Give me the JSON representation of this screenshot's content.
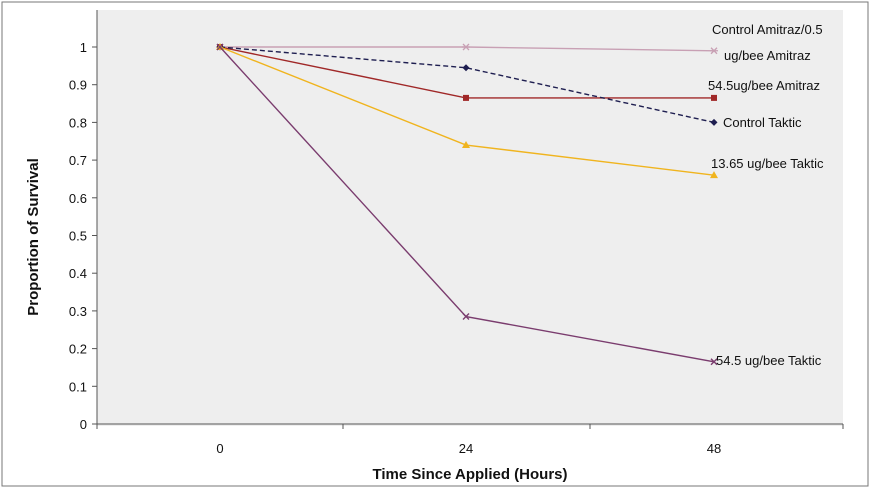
{
  "chart_data": {
    "type": "line",
    "title": "",
    "xlabel": "Time Since Applied (Hours)",
    "ylabel": "Proportion of Survival",
    "categories": [
      "0",
      "24",
      "48"
    ],
    "ylim": [
      0,
      1
    ],
    "yticks": [
      "0",
      "0.1",
      "0.2",
      "0.3",
      "0.4",
      "0.5",
      "0.6",
      "0.7",
      "0.8",
      "0.9",
      "1"
    ],
    "grid": false,
    "legend": "none",
    "plot_background": "#eeeeee",
    "series": [
      {
        "name_lines": [
          "Control Amitraz/0.5",
          "ug/bee Amitraz"
        ],
        "values": [
          1.0,
          1.0,
          0.99
        ],
        "color": "#c8a0b4",
        "marker": "asterisk",
        "dashed": false
      },
      {
        "name_lines": [
          "54.5ug/bee Amitraz"
        ],
        "values": [
          1.0,
          0.865,
          0.865
        ],
        "color": "#a02828",
        "marker": "square",
        "dashed": false
      },
      {
        "name_lines": [
          "Control Taktic"
        ],
        "values": [
          1.0,
          0.945,
          0.8
        ],
        "color": "#1e1e50",
        "marker": "diamond",
        "dashed": true
      },
      {
        "name_lines": [
          "13.65 ug/bee Taktic"
        ],
        "values": [
          1.0,
          0.74,
          0.66
        ],
        "color": "#f0b41e",
        "marker": "triangle",
        "dashed": false
      },
      {
        "name_lines": [
          "54.5 ug/bee Taktic"
        ],
        "values": [
          1.0,
          0.285,
          0.165
        ],
        "color": "#7a3c6e",
        "marker": "x",
        "dashed": false
      }
    ]
  }
}
